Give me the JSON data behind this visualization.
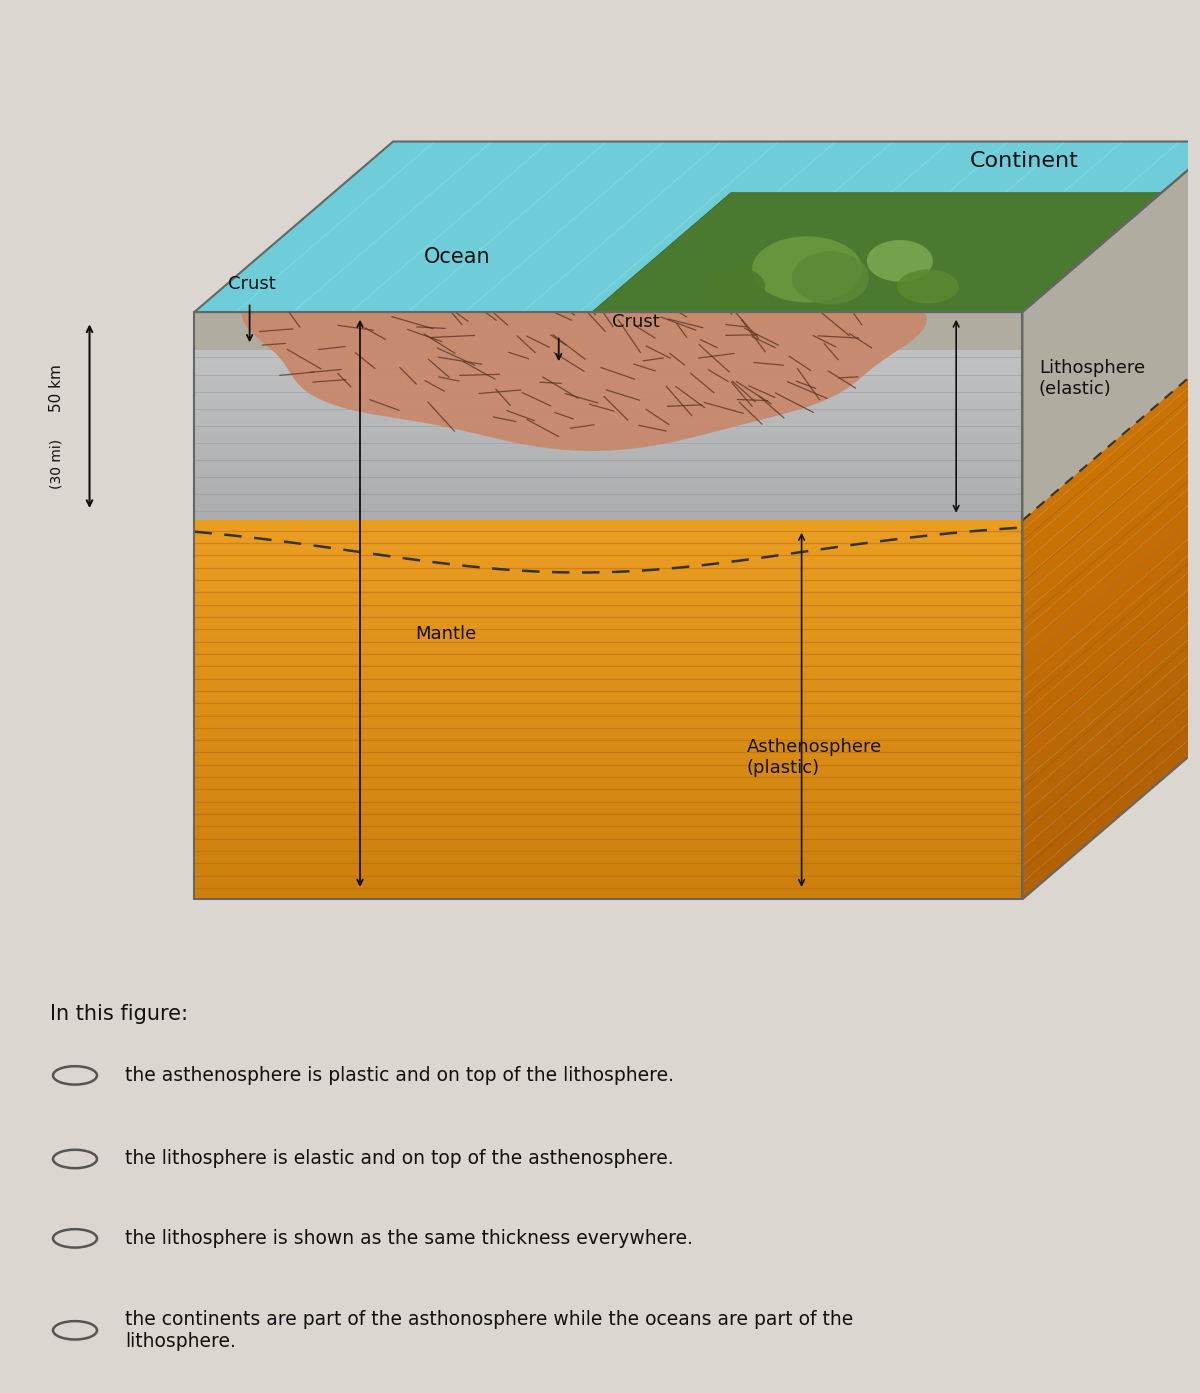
{
  "bg_color": "#dbd6cf",
  "fig_width": 12.0,
  "fig_height": 13.93,
  "labels": {
    "continent": "Continent",
    "ocean": "Ocean",
    "crust_left": "Crust",
    "crust_center": "Crust",
    "lithosphere": "Lithosphere\n(elastic)",
    "mantle": "Mantle",
    "asthenosphere": "Asthenosphere\n(plastic)",
    "scale_km": "50 km",
    "scale_mi": "(30 mi)"
  },
  "question_text": "In this figure:",
  "options": [
    "the asthenosphere is plastic and on top of the lithosphere.",
    "the lithosphere is elastic and on top of the asthenosphere.",
    "the lithosphere is shown as the same thickness everywhere.",
    "the continents are part of the asthonosphere while the oceans are part of the\nlithosphere."
  ],
  "colors": {
    "ocean_blue": "#6ecdd8",
    "ocean_blue2": "#7ad8e0",
    "crust_pink": "#c8876a",
    "crust_pink2": "#d9987a",
    "lithosphere_gray": "#b8b4aa",
    "lithosphere_gray2": "#ccc8bc",
    "mantle_orange": "#d97820",
    "mantle_orange2": "#e89030",
    "asth_orange": "#e8a030",
    "asth_stripe": "#d07818",
    "side_orange": "#c06818",
    "side_orange2": "#b85808",
    "dashed": "#333333",
    "text": "#111111",
    "bg": "#dbd6cf",
    "gray_side": "#a8a49a"
  }
}
